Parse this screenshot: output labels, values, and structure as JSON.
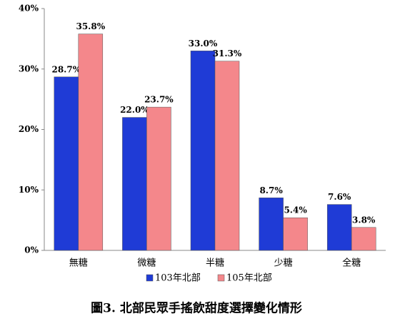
{
  "chart_data": {
    "type": "bar",
    "title": "圖3. 北部民眾手搖飲甜度選擇變化情形",
    "categories": [
      "無糖",
      "微糖",
      "半糖",
      "少糖",
      "全糖"
    ],
    "series": [
      {
        "name": "103年北部",
        "color": "#1f3bd6",
        "values": [
          28.7,
          22.0,
          33.0,
          8.7,
          7.6
        ],
        "value_labels": [
          "28.7%",
          "22.0%",
          "33.0%",
          "8.7%",
          "7.6%"
        ]
      },
      {
        "name": "105年北部",
        "color": "#f4878b",
        "values": [
          35.8,
          23.7,
          31.3,
          5.4,
          3.8
        ],
        "value_labels": [
          "35.8%",
          "23.7%",
          "31.3%",
          "5.4%",
          "3.8%"
        ]
      }
    ],
    "ylim": [
      0,
      40
    ],
    "yticks": [
      {
        "value": 0,
        "label": "0%"
      },
      {
        "value": 10,
        "label": "10%"
      },
      {
        "value": 20,
        "label": "20%"
      },
      {
        "value": 30,
        "label": "30%"
      },
      {
        "value": 40,
        "label": "40%"
      }
    ],
    "legend": "bottom"
  }
}
